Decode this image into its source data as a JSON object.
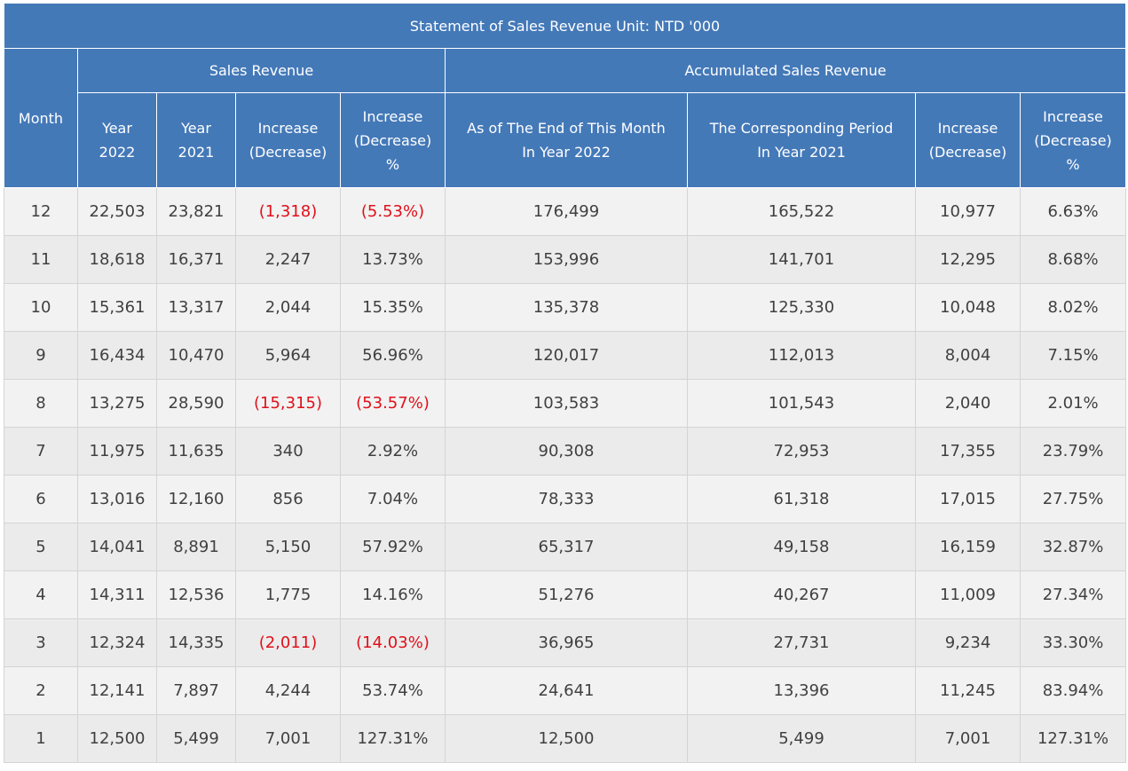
{
  "title": "Statement of Sales Revenue  Unit: NTD '000",
  "groups": {
    "month": "Month",
    "sales": "Sales Revenue",
    "accumulated": "Accumulated Sales Revenue"
  },
  "columns": [
    {
      "lines": [
        "Year",
        "2022"
      ]
    },
    {
      "lines": [
        "Year",
        "2021"
      ]
    },
    {
      "lines": [
        "Increase",
        "(Decrease)"
      ]
    },
    {
      "lines": [
        "Increase",
        "(Decrease)",
        "%"
      ]
    },
    {
      "lines": [
        "As of The End of This Month",
        "In Year 2022"
      ]
    },
    {
      "lines": [
        "The Corresponding Period",
        "In Year 2021"
      ]
    },
    {
      "lines": [
        "Increase",
        "(Decrease)"
      ]
    },
    {
      "lines": [
        "Increase",
        "(Decrease)",
        "%"
      ]
    }
  ],
  "rows": [
    [
      "12",
      "22,503",
      "23,821",
      "(1,318)",
      "(5.53%)",
      "176,499",
      "165,522",
      "10,977",
      "6.63%"
    ],
    [
      "11",
      "18,618",
      "16,371",
      "2,247",
      "13.73%",
      "153,996",
      "141,701",
      "12,295",
      "8.68%"
    ],
    [
      "10",
      "15,361",
      "13,317",
      "2,044",
      "15.35%",
      "135,378",
      "125,330",
      "10,048",
      "8.02%"
    ],
    [
      "9",
      "16,434",
      "10,470",
      "5,964",
      "56.96%",
      "120,017",
      "112,013",
      "8,004",
      "7.15%"
    ],
    [
      "8",
      "13,275",
      "28,590",
      "(15,315)",
      "(53.57%)",
      "103,583",
      "101,543",
      "2,040",
      "2.01%"
    ],
    [
      "7",
      "11,975",
      "11,635",
      "340",
      "2.92%",
      "90,308",
      "72,953",
      "17,355",
      "23.79%"
    ],
    [
      "6",
      "13,016",
      "12,160",
      "856",
      "7.04%",
      "78,333",
      "61,318",
      "17,015",
      "27.75%"
    ],
    [
      "5",
      "14,041",
      "8,891",
      "5,150",
      "57.92%",
      "65,317",
      "49,158",
      "16,159",
      "32.87%"
    ],
    [
      "4",
      "14,311",
      "12,536",
      "1,775",
      "14.16%",
      "51,276",
      "40,267",
      "11,009",
      "27.34%"
    ],
    [
      "3",
      "12,324",
      "14,335",
      "(2,011)",
      "(14.03%)",
      "36,965",
      "27,731",
      "9,234",
      "33.30%"
    ],
    [
      "2",
      "12,141",
      "7,897",
      "4,244",
      "53.74%",
      "24,641",
      "13,396",
      "11,245",
      "83.94%"
    ],
    [
      "1",
      "12,500",
      "5,499",
      "7,001",
      "127.31%",
      "12,500",
      "5,499",
      "7,001",
      "127.31%"
    ]
  ],
  "colors": {
    "header_bg": "#4479b8",
    "header_text": "#ffffff",
    "negative": "#e0101a",
    "row_odd": "#f2f2f2",
    "row_even": "#ebebeb"
  }
}
